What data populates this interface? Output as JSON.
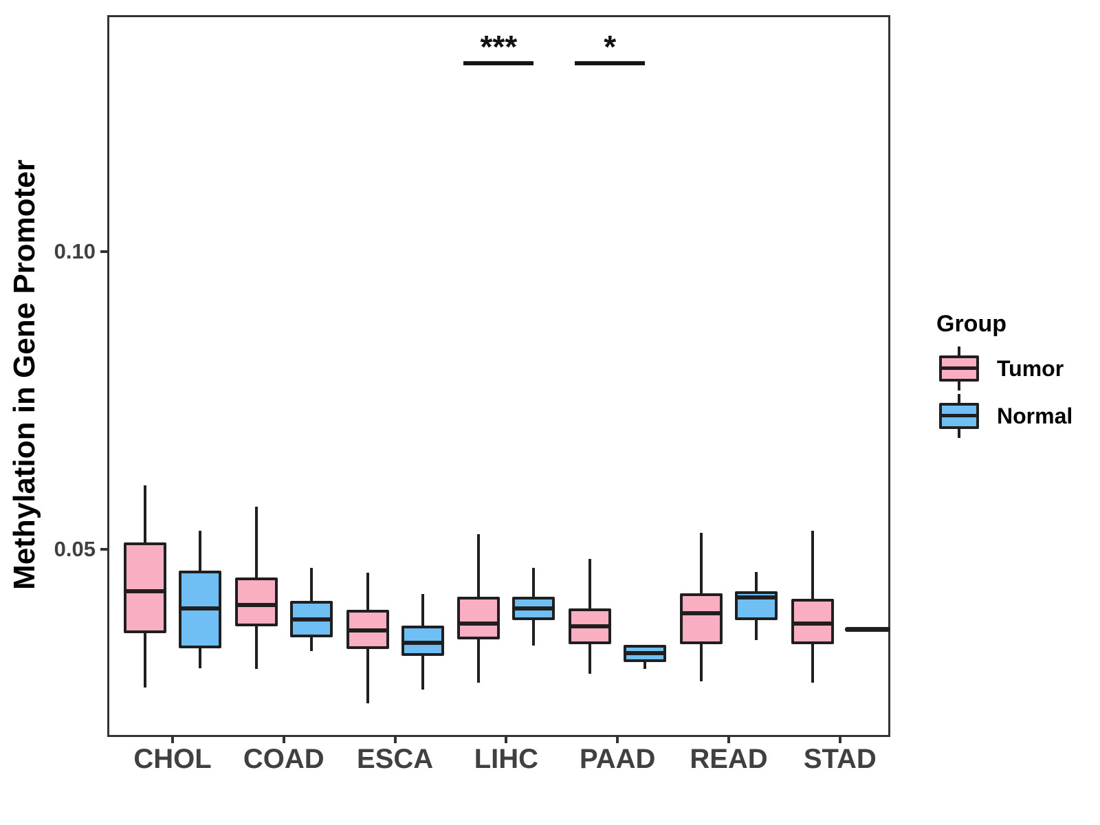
{
  "chart_data": {
    "type": "grouped_boxplot",
    "title": "",
    "xlabel": "",
    "ylabel": "Methylation in Gene Promoter",
    "categories": [
      "CHOL",
      "COAD",
      "ESCA",
      "LIHC",
      "PAAD",
      "READ",
      "STAD"
    ],
    "ylim": [
      0.0187,
      0.1396
    ],
    "yticks": [
      {
        "value": 0.05,
        "label": "0.05"
      },
      {
        "value": 0.1,
        "label": "0.10"
      }
    ],
    "grid": false,
    "legend": {
      "title": "Group",
      "position": "right"
    },
    "style": {
      "line_color": "#1f1f1f",
      "panel_border_color": "#333333",
      "tick_label_color": "#404040",
      "background": "#ffffff"
    },
    "series": [
      {
        "name": "Tumor",
        "fill": "#FAAEC1",
        "boxes": [
          {
            "whislo": 0.0268,
            "q1": 0.0359,
            "med": 0.043,
            "q3": 0.0511,
            "whishi": 0.0607
          },
          {
            "whislo": 0.0299,
            "q1": 0.0371,
            "med": 0.0406,
            "q3": 0.0453,
            "whishi": 0.0572
          },
          {
            "whislo": 0.0241,
            "q1": 0.0333,
            "med": 0.0364,
            "q3": 0.0398,
            "whishi": 0.0461
          },
          {
            "whislo": 0.0276,
            "q1": 0.0349,
            "med": 0.0375,
            "q3": 0.042,
            "whishi": 0.0525
          },
          {
            "whislo": 0.0291,
            "q1": 0.0341,
            "med": 0.0371,
            "q3": 0.0401,
            "whishi": 0.0484
          },
          {
            "whislo": 0.0278,
            "q1": 0.034,
            "med": 0.0393,
            "q3": 0.0426,
            "whishi": 0.0528
          },
          {
            "whislo": 0.0276,
            "q1": 0.034,
            "med": 0.0375,
            "q3": 0.0417,
            "whishi": 0.0531
          }
        ]
      },
      {
        "name": "Normal",
        "fill": "#70BFF4",
        "boxes": [
          {
            "whislo": 0.03,
            "q1": 0.0334,
            "med": 0.0401,
            "q3": 0.0464,
            "whishi": 0.0531
          },
          {
            "whislo": 0.0329,
            "q1": 0.0352,
            "med": 0.0382,
            "q3": 0.0413,
            "whishi": 0.0469
          },
          {
            "whislo": 0.0264,
            "q1": 0.0321,
            "med": 0.0343,
            "q3": 0.0372,
            "whishi": 0.0425
          },
          {
            "whislo": 0.0338,
            "q1": 0.0381,
            "med": 0.0401,
            "q3": 0.042,
            "whishi": 0.0469
          },
          {
            "whislo": 0.0299,
            "q1": 0.031,
            "med": 0.0325,
            "q3": 0.0339,
            "whishi": null
          },
          {
            "whislo": 0.0348,
            "q1": 0.0381,
            "med": 0.0419,
            "q3": 0.043,
            "whishi": 0.0462
          },
          {
            "single": 0.0365
          }
        ]
      }
    ],
    "annotations": [
      {
        "category": "LIHC",
        "label": "***"
      },
      {
        "category": "PAAD",
        "label": "*"
      }
    ]
  }
}
